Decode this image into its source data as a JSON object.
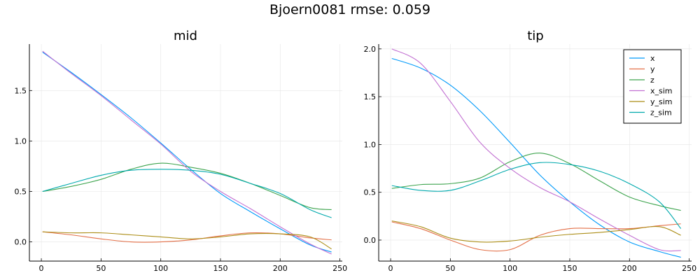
{
  "figure": {
    "suptitle": "Bjoern0081 rmse: 0.059"
  },
  "chart_data": [
    {
      "type": "line",
      "title": "mid",
      "xlabel": "",
      "ylabel": "",
      "xlim": [
        -10,
        252
      ],
      "ylim": [
        -0.19,
        1.96
      ],
      "xticks": [
        0,
        50,
        100,
        150,
        200,
        250
      ],
      "yticks": [
        0.0,
        0.5,
        1.0,
        1.5
      ],
      "ytick_labels": [
        "0.0",
        "0.5",
        "1.0",
        "1.5"
      ],
      "grid": true,
      "legend": "none",
      "series": [
        {
          "name": "x",
          "color": "#009AFA",
          "x": [
            1,
            25,
            50,
            75,
            100,
            125,
            150,
            175,
            200,
            225,
            243
          ],
          "y": [
            1.88,
            1.68,
            1.46,
            1.23,
            0.98,
            0.72,
            0.48,
            0.3,
            0.13,
            -0.03,
            -0.1
          ]
        },
        {
          "name": "y",
          "color": "#E36F47",
          "x": [
            1,
            25,
            50,
            75,
            100,
            125,
            150,
            175,
            200,
            225,
            243
          ],
          "y": [
            0.1,
            0.07,
            0.03,
            0.0,
            0.0,
            0.02,
            0.06,
            0.09,
            0.08,
            0.04,
            0.02
          ]
        },
        {
          "name": "z",
          "color": "#3EA44E",
          "x": [
            1,
            25,
            50,
            75,
            100,
            125,
            150,
            175,
            200,
            225,
            243
          ],
          "y": [
            0.5,
            0.55,
            0.62,
            0.72,
            0.78,
            0.74,
            0.68,
            0.58,
            0.46,
            0.34,
            0.32
          ]
        },
        {
          "name": "x_sim",
          "color": "#C271D2",
          "x": [
            1,
            25,
            50,
            75,
            100,
            125,
            150,
            175,
            200,
            225,
            243
          ],
          "y": [
            1.89,
            1.67,
            1.45,
            1.21,
            0.97,
            0.7,
            0.5,
            0.33,
            0.15,
            -0.02,
            -0.12
          ]
        },
        {
          "name": "y_sim",
          "color": "#AC8E18",
          "x": [
            1,
            25,
            50,
            75,
            100,
            125,
            150,
            175,
            200,
            225,
            243
          ],
          "y": [
            0.1,
            0.09,
            0.09,
            0.07,
            0.05,
            0.03,
            0.05,
            0.08,
            0.08,
            0.05,
            -0.07
          ]
        },
        {
          "name": "z_sim",
          "color": "#00A9AD",
          "x": [
            1,
            25,
            50,
            75,
            100,
            125,
            150,
            175,
            200,
            225,
            243
          ],
          "y": [
            0.5,
            0.58,
            0.66,
            0.71,
            0.72,
            0.71,
            0.67,
            0.58,
            0.48,
            0.32,
            0.24
          ]
        }
      ]
    },
    {
      "type": "line",
      "title": "tip",
      "xlabel": "",
      "ylabel": "",
      "xlim": [
        -10,
        252
      ],
      "ylim": [
        -0.22,
        2.05
      ],
      "xticks": [
        0,
        50,
        100,
        150,
        200,
        250
      ],
      "yticks": [
        0.0,
        0.5,
        1.0,
        1.5,
        2.0
      ],
      "ytick_labels": [
        "0.0",
        "0.5",
        "1.0",
        "1.5",
        "2.0"
      ],
      "grid": true,
      "legend": "top-right",
      "series": [
        {
          "name": "x",
          "color": "#009AFA",
          "x": [
            1,
            25,
            50,
            75,
            100,
            125,
            150,
            175,
            200,
            225,
            243
          ],
          "y": [
            1.9,
            1.8,
            1.62,
            1.35,
            1.02,
            0.68,
            0.4,
            0.16,
            -0.02,
            -0.12,
            -0.18
          ]
        },
        {
          "name": "y",
          "color": "#E36F47",
          "x": [
            1,
            25,
            50,
            75,
            100,
            125,
            150,
            175,
            200,
            225,
            243
          ],
          "y": [
            0.19,
            0.12,
            0.0,
            -0.1,
            -0.1,
            0.05,
            0.12,
            0.12,
            0.12,
            0.15,
            0.17
          ]
        },
        {
          "name": "z",
          "color": "#3EA44E",
          "x": [
            1,
            25,
            50,
            75,
            100,
            125,
            150,
            175,
            200,
            225,
            243
          ],
          "y": [
            0.54,
            0.58,
            0.59,
            0.65,
            0.82,
            0.91,
            0.8,
            0.62,
            0.45,
            0.36,
            0.31
          ]
        },
        {
          "name": "x_sim",
          "color": "#C271D2",
          "x": [
            1,
            25,
            50,
            75,
            100,
            125,
            150,
            175,
            200,
            225,
            243
          ],
          "y": [
            2.0,
            1.85,
            1.45,
            1.02,
            0.75,
            0.55,
            0.4,
            0.22,
            0.05,
            -0.1,
            -0.11
          ]
        },
        {
          "name": "y_sim",
          "color": "#AC8E18",
          "x": [
            1,
            25,
            50,
            75,
            100,
            125,
            150,
            175,
            200,
            225,
            243
          ],
          "y": [
            0.2,
            0.14,
            0.02,
            -0.02,
            -0.01,
            0.03,
            0.06,
            0.08,
            0.11,
            0.14,
            0.05
          ]
        },
        {
          "name": "z_sim",
          "color": "#00A9AD",
          "x": [
            1,
            25,
            50,
            75,
            100,
            125,
            150,
            175,
            200,
            225,
            243
          ],
          "y": [
            0.57,
            0.52,
            0.52,
            0.62,
            0.74,
            0.81,
            0.79,
            0.72,
            0.59,
            0.4,
            0.12
          ]
        }
      ]
    }
  ]
}
